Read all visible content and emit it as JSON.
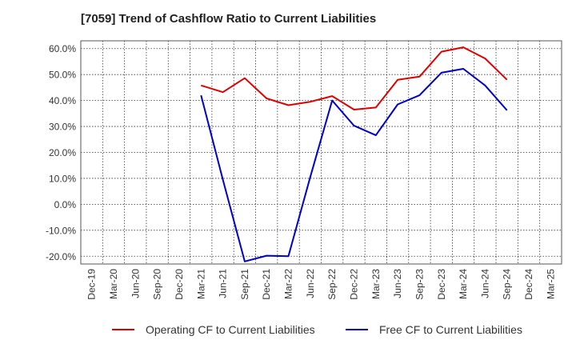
{
  "chart_data": {
    "type": "line",
    "title": "[7059]  Trend of Cashflow Ratio to Current Liabilities",
    "xlabel": "",
    "ylabel": "",
    "ylim": [
      -23.0,
      63.0
    ],
    "y_ticks": [
      60,
      50,
      40,
      30,
      20,
      10,
      0,
      -10,
      -20
    ],
    "y_tick_labels": [
      "60.0%",
      "50.0%",
      "40.0%",
      "30.0%",
      "20.0%",
      "10.0%",
      "0.0%",
      "-10.0%",
      "-20.0%"
    ],
    "categories": [
      "Dec-19",
      "Mar-20",
      "Jun-20",
      "Sep-20",
      "Dec-20",
      "Mar-21",
      "Jun-21",
      "Sep-21",
      "Dec-21",
      "Mar-22",
      "Jun-22",
      "Sep-22",
      "Dec-22",
      "Mar-23",
      "Jun-23",
      "Sep-23",
      "Dec-23",
      "Mar-24",
      "Jun-24",
      "Sep-24",
      "Dec-24",
      "Mar-25"
    ],
    "grid": true,
    "legend_position": "bottom",
    "series": [
      {
        "name": "Operating CF to Current Liabilities",
        "color": "#e00000",
        "values": [
          null,
          null,
          null,
          null,
          null,
          45.8,
          43.2,
          48.6,
          40.8,
          38.2,
          39.5,
          41.7,
          36.5,
          37.3,
          48.0,
          49.2,
          58.8,
          60.5,
          56.2,
          48.0,
          null,
          null
        ]
      },
      {
        "name": "Free CF to Current Liabilities",
        "color": "#0000cc",
        "values": [
          null,
          null,
          null,
          null,
          null,
          42.0,
          9.5,
          -22.0,
          -19.8,
          -20.0,
          10.5,
          40.0,
          30.3,
          26.6,
          38.5,
          42.0,
          50.7,
          52.2,
          45.8,
          36.2,
          null,
          null
        ]
      }
    ]
  }
}
